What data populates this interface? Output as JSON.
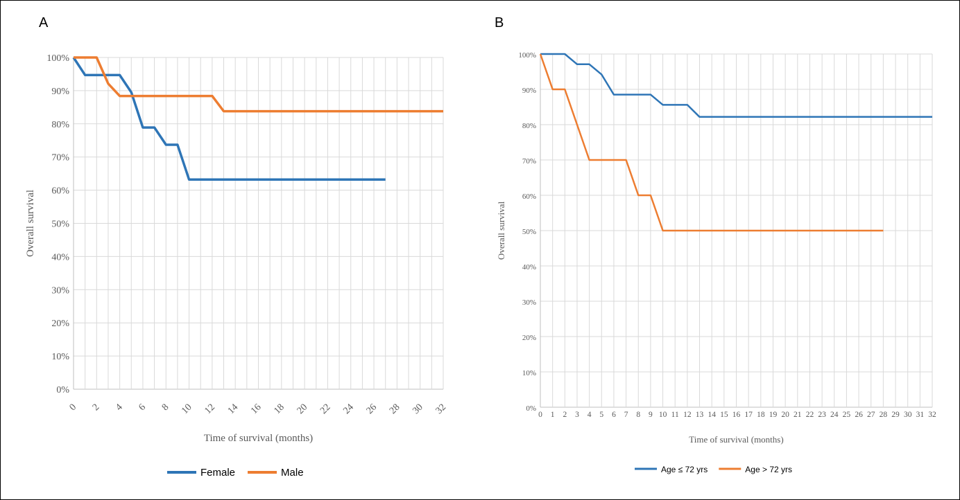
{
  "chart_data": [
    {
      "panel": "A",
      "type": "line",
      "xlabel": "Time of survival (months)",
      "ylabel": "Overall survival",
      "xlim": [
        0,
        32
      ],
      "ylim": [
        0,
        100
      ],
      "x_ticks": [
        "0",
        "2",
        "4",
        "6",
        "8",
        "10",
        "12",
        "14",
        "16",
        "18",
        "20",
        "22",
        "24",
        "26",
        "28",
        "30",
        "32"
      ],
      "y_ticks": [
        "0%",
        "10%",
        "20%",
        "30%",
        "40%",
        "50%",
        "60%",
        "70%",
        "80%",
        "90%",
        "100%"
      ],
      "grid": true,
      "legend": "bottom",
      "series": [
        {
          "name": "Female",
          "color": "#2e75b6",
          "points": [
            [
              0,
              100
            ],
            [
              1,
              94.7
            ],
            [
              4,
              94.7
            ],
            [
              5,
              89.5
            ],
            [
              6,
              78.9
            ],
            [
              7,
              78.9
            ],
            [
              8,
              73.7
            ],
            [
              9,
              73.7
            ],
            [
              10,
              63.2
            ],
            [
              27,
              63.2
            ]
          ]
        },
        {
          "name": "Male",
          "color": "#ed7d31",
          "points": [
            [
              0,
              100
            ],
            [
              2,
              100
            ],
            [
              3,
              92.1
            ],
            [
              4,
              88.4
            ],
            [
              12,
              88.4
            ],
            [
              13,
              83.8
            ],
            [
              32,
              83.8
            ]
          ]
        }
      ]
    },
    {
      "panel": "B",
      "type": "line",
      "xlabel": "Time of survival (months)",
      "ylabel": "Overall survival",
      "xlim": [
        0,
        32
      ],
      "ylim": [
        0,
        100
      ],
      "x_ticks": [
        "0",
        "1",
        "2",
        "3",
        "4",
        "5",
        "6",
        "7",
        "8",
        "9",
        "10",
        "11",
        "12",
        "13",
        "14",
        "15",
        "16",
        "17",
        "18",
        "19",
        "20",
        "21",
        "22",
        "23",
        "24",
        "25",
        "26",
        "27",
        "28",
        "29",
        "30",
        "31",
        "32"
      ],
      "y_ticks": [
        "0%",
        "10%",
        "20%",
        "30%",
        "40%",
        "50%",
        "60%",
        "70%",
        "80%",
        "90%",
        "100%"
      ],
      "grid": true,
      "legend": "bottom",
      "series": [
        {
          "name": "Age ≤ 72 yrs",
          "color": "#2e75b6",
          "points": [
            [
              0,
              100
            ],
            [
              2,
              100
            ],
            [
              3,
              97.1
            ],
            [
              4,
              97.1
            ],
            [
              5,
              94.2
            ],
            [
              6,
              88.5
            ],
            [
              9,
              88.5
            ],
            [
              10,
              85.6
            ],
            [
              12,
              85.6
            ],
            [
              13,
              82.2
            ],
            [
              32,
              82.2
            ]
          ]
        },
        {
          "name": "Age > 72 yrs",
          "color": "#ed7d31",
          "points": [
            [
              0,
              100
            ],
            [
              1,
              90
            ],
            [
              2,
              90
            ],
            [
              4,
              70
            ],
            [
              7,
              70
            ],
            [
              8,
              60
            ],
            [
              9,
              60
            ],
            [
              10,
              50
            ],
            [
              28,
              50
            ]
          ]
        }
      ]
    }
  ]
}
